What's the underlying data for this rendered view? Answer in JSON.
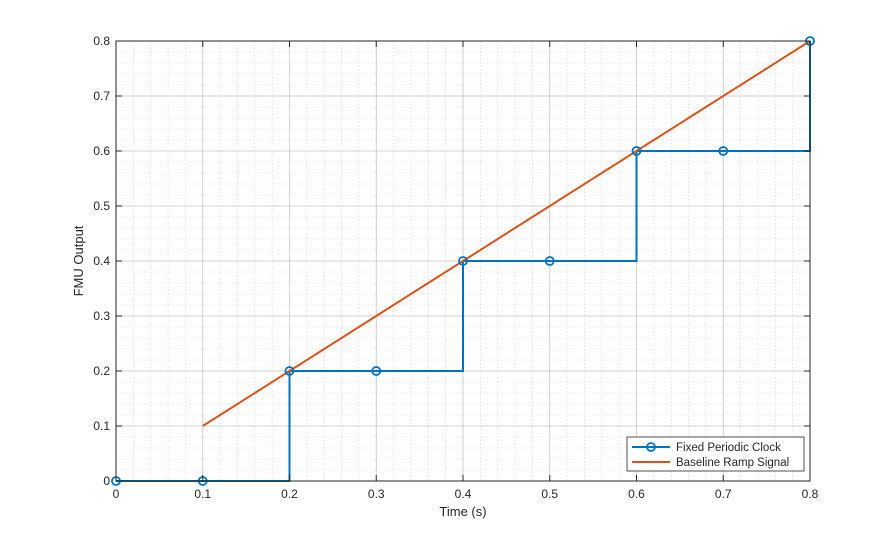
{
  "chart_data": {
    "type": "line",
    "xlabel": "Time (s)",
    "ylabel": "FMU Output",
    "xlim": [
      0,
      0.8
    ],
    "ylim": [
      0,
      0.8
    ],
    "xticks": [
      "0",
      "0.1",
      "0.2",
      "0.3",
      "0.4",
      "0.5",
      "0.6",
      "0.7",
      "0.8"
    ],
    "yticks": [
      "0",
      "0.1",
      "0.2",
      "0.3",
      "0.4",
      "0.5",
      "0.6",
      "0.7",
      "0.8"
    ],
    "grid": true,
    "minor_grid": true,
    "legend_position": "bottom-right",
    "series": [
      {
        "name": "Fixed Periodic Clock",
        "color": "#0072BD",
        "style": "stairs-with-circle-markers",
        "x": [
          0,
          0.1,
          0.2,
          0.3,
          0.4,
          0.5,
          0.6,
          0.7,
          0.8
        ],
        "y": [
          0,
          0,
          0.2,
          0.2,
          0.4,
          0.4,
          0.6,
          0.6,
          0.8
        ]
      },
      {
        "name": "Baseline Ramp Signal",
        "color": "#D95319",
        "style": "line",
        "x": [
          0.1,
          0.8
        ],
        "y": [
          0.1,
          0.8
        ]
      }
    ]
  }
}
